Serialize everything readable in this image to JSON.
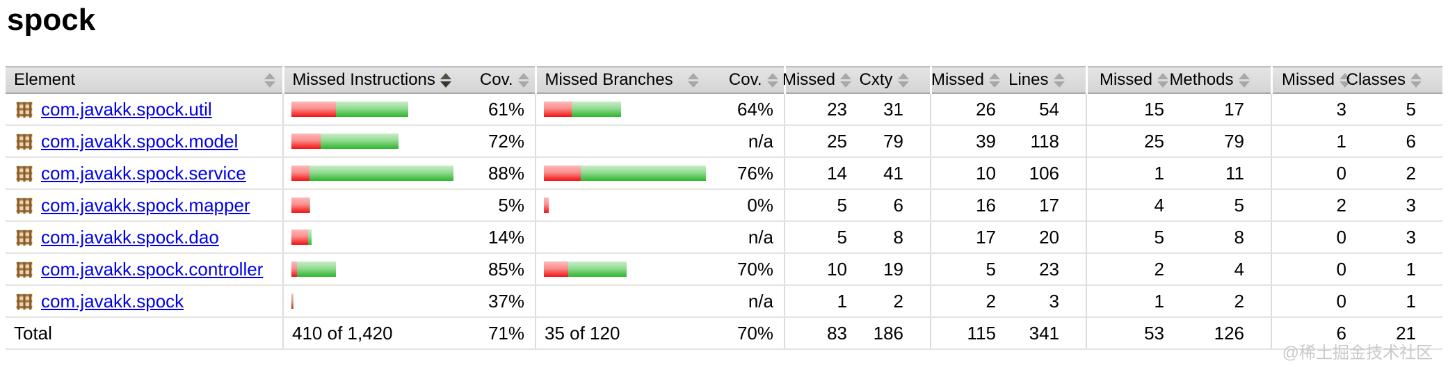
{
  "page": {
    "title": "spock",
    "watermark": "@稀土掘金技术社区"
  },
  "colors": {
    "link": "#0000e8",
    "bar_red_light": "#fdb9b9",
    "bar_red_dark": "#f41111",
    "bar_green_light": "#c9edc7",
    "bar_green_dark": "#2eb42e",
    "header_background": "#dcdcdc",
    "watermark_gray": "#c9c9c9"
  },
  "table": {
    "headers": [
      {
        "label": "Element",
        "sort": "both"
      },
      {
        "label": "Missed Instructions",
        "sort": "desc"
      },
      {
        "label": "Cov.",
        "sort": "both"
      },
      {
        "label": "Missed Branches",
        "sort": "both"
      },
      {
        "label": "Cov.",
        "sort": "both"
      },
      {
        "label": "Missed",
        "sort": "both"
      },
      {
        "label": "Cxty",
        "sort": "both"
      },
      {
        "label": "Missed",
        "sort": "both"
      },
      {
        "label": "Lines",
        "sort": "both"
      },
      {
        "label": "Missed",
        "sort": "both"
      },
      {
        "label": "Methods",
        "sort": "both"
      },
      {
        "label": "Missed",
        "sort": "both"
      },
      {
        "label": "Classes",
        "sort": "both"
      }
    ],
    "rows": [
      {
        "name": "com.javakk.spock.util",
        "ibar_red": 64,
        "ibar_green": 104,
        "icov": "61%",
        "bbar_red": 40,
        "bbar_green": 71,
        "bcov": "64%",
        "missed": 23,
        "cxty": 31,
        "lmissed": 26,
        "lines": 54,
        "mmissed": 15,
        "methods": 17,
        "cmissed": 3,
        "classes": 5
      },
      {
        "name": "com.javakk.spock.model",
        "ibar_red": 42,
        "ibar_green": 112,
        "icov": "72%",
        "bbar_red": 0,
        "bbar_green": 0,
        "bcov": "n/a",
        "missed": 25,
        "cxty": 79,
        "lmissed": 39,
        "lines": 118,
        "mmissed": 25,
        "methods": 79,
        "cmissed": 1,
        "classes": 6
      },
      {
        "name": "com.javakk.spock.service",
        "ibar_red": 27,
        "ibar_green": 213,
        "icov": "88%",
        "bbar_red": 55,
        "bbar_green": 185,
        "bcov": "76%",
        "missed": 14,
        "cxty": 41,
        "lmissed": 10,
        "lines": 106,
        "mmissed": 1,
        "methods": 11,
        "cmissed": 0,
        "classes": 2
      },
      {
        "name": "com.javakk.spock.mapper",
        "ibar_red": 26,
        "ibar_green": 1,
        "icov": "5%",
        "bbar_red": 7,
        "bbar_green": 0,
        "bcov": "0%",
        "missed": 5,
        "cxty": 6,
        "lmissed": 16,
        "lines": 17,
        "mmissed": 4,
        "methods": 5,
        "cmissed": 2,
        "classes": 3
      },
      {
        "name": "com.javakk.spock.dao",
        "ibar_red": 24,
        "ibar_green": 5,
        "icov": "14%",
        "bbar_red": 0,
        "bbar_green": 0,
        "bcov": "n/a",
        "missed": 5,
        "cxty": 8,
        "lmissed": 17,
        "lines": 20,
        "mmissed": 5,
        "methods": 8,
        "cmissed": 0,
        "classes": 3
      },
      {
        "name": "com.javakk.spock.controller",
        "ibar_red": 8,
        "ibar_green": 56,
        "icov": "85%",
        "bbar_red": 35,
        "bbar_green": 84,
        "bcov": "70%",
        "missed": 10,
        "cxty": 19,
        "lmissed": 5,
        "lines": 23,
        "mmissed": 2,
        "methods": 4,
        "cmissed": 0,
        "classes": 1
      },
      {
        "name": "com.javakk.spock",
        "ibar_red": 2,
        "ibar_green": 1,
        "icov": "37%",
        "bbar_red": 0,
        "bbar_green": 0,
        "bcov": "n/a",
        "missed": 1,
        "cxty": 2,
        "lmissed": 2,
        "lines": 3,
        "mmissed": 1,
        "methods": 2,
        "cmissed": 0,
        "classes": 1
      }
    ],
    "total": {
      "label": "Total",
      "instructions": "410 of 1,420",
      "icov": "71%",
      "branches": "35 of 120",
      "bcov": "70%",
      "missed": 83,
      "cxty": 186,
      "lmissed": 115,
      "lines": 341,
      "mmissed": 53,
      "methods": 126,
      "cmissed": 6,
      "classes": 21
    }
  }
}
